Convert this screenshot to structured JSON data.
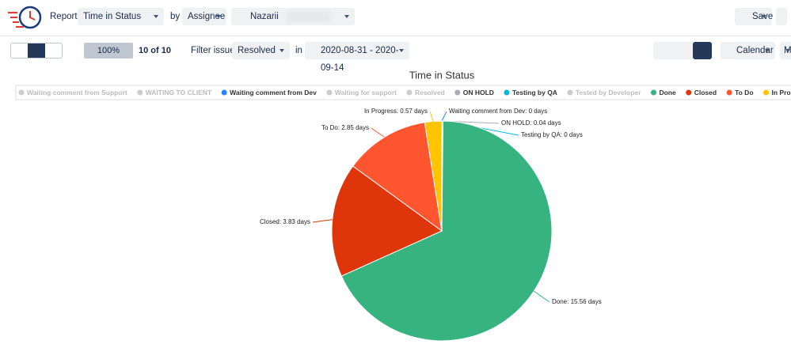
{
  "toolbar": {
    "report_label": "Report:",
    "report": "Time in Status",
    "by_label": "by",
    "group_by": "Assignee",
    "user": "Nazarii",
    "save": "Save"
  },
  "filters": {
    "progress": "100%",
    "count": "10 of 10",
    "filter_label": "Filter issues:",
    "status": "Resolved",
    "in_label": "in",
    "date_range": "2020-08-31 - 2020-09-14",
    "calendar": "Calendar",
    "more": "M"
  },
  "chart_data": {
    "type": "pie",
    "title": "Time in Status",
    "categories": [
      "Waiting comment from Support",
      "WAITING TO CLIENT",
      "Waiting comment from Dev",
      "Waiting for support",
      "Resolved",
      "ON HOLD",
      "Testing by QA",
      "Tested by Developer",
      "Done",
      "Closed",
      "To Do",
      "In Progress"
    ],
    "values": [
      null,
      null,
      0,
      null,
      null,
      0.04,
      0,
      null,
      15.56,
      3.83,
      2.85,
      0.57
    ],
    "value_labels": [
      null,
      null,
      "Waiting comment from Dev: 0 days",
      null,
      null,
      "ON HOLD: 0.04 days",
      "Testing by QA: 0 days",
      null,
      "Done: 15.56 days",
      "Closed: 3.83 days",
      "To Do: 2.85 days",
      "In Progress: 0.57 days"
    ],
    "colors": [
      "#cccccc",
      "#cccccc",
      "#2684ff",
      "#cccccc",
      "#cccccc",
      "#a5adba",
      "#00b8d9",
      "#cccccc",
      "#36b37e",
      "#de350b",
      "#ff5630",
      "#ffc400"
    ],
    "hidden": [
      true,
      true,
      false,
      true,
      true,
      false,
      false,
      true,
      false,
      false,
      false,
      false
    ]
  }
}
